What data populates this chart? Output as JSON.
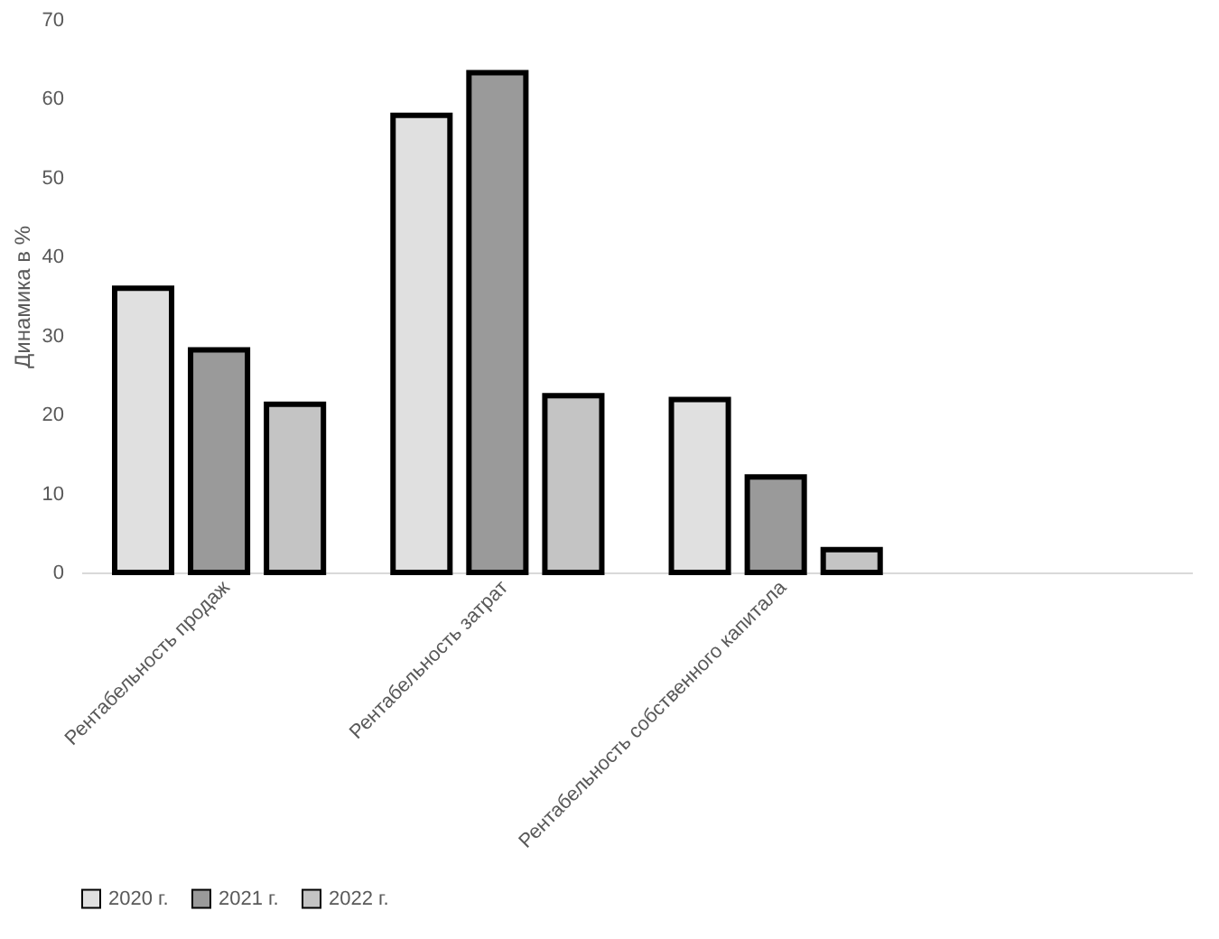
{
  "chart_data": {
    "type": "bar",
    "ylabel": "Динамика в %",
    "categories": [
      "Рентабельность продаж",
      "Рентабельность затрат",
      "Рентабельность собственного капитала",
      null
    ],
    "series": [
      {
        "name": "2020 г.",
        "color": "#e0e0e0",
        "values": [
          36.0,
          57.9,
          21.9,
          null
        ]
      },
      {
        "name": "2021 г.",
        "color": "#9a9a9a",
        "values": [
          28.2,
          63.3,
          12.1,
          null
        ]
      },
      {
        "name": "2022 г.",
        "color": "#c4c4c4",
        "values": [
          21.3,
          22.4,
          2.9,
          null
        ]
      }
    ],
    "ylim": [
      0,
      70
    ],
    "yticks": [
      0,
      10,
      20,
      30,
      40,
      50,
      60,
      70
    ],
    "grid": false,
    "legend": "bottom"
  }
}
